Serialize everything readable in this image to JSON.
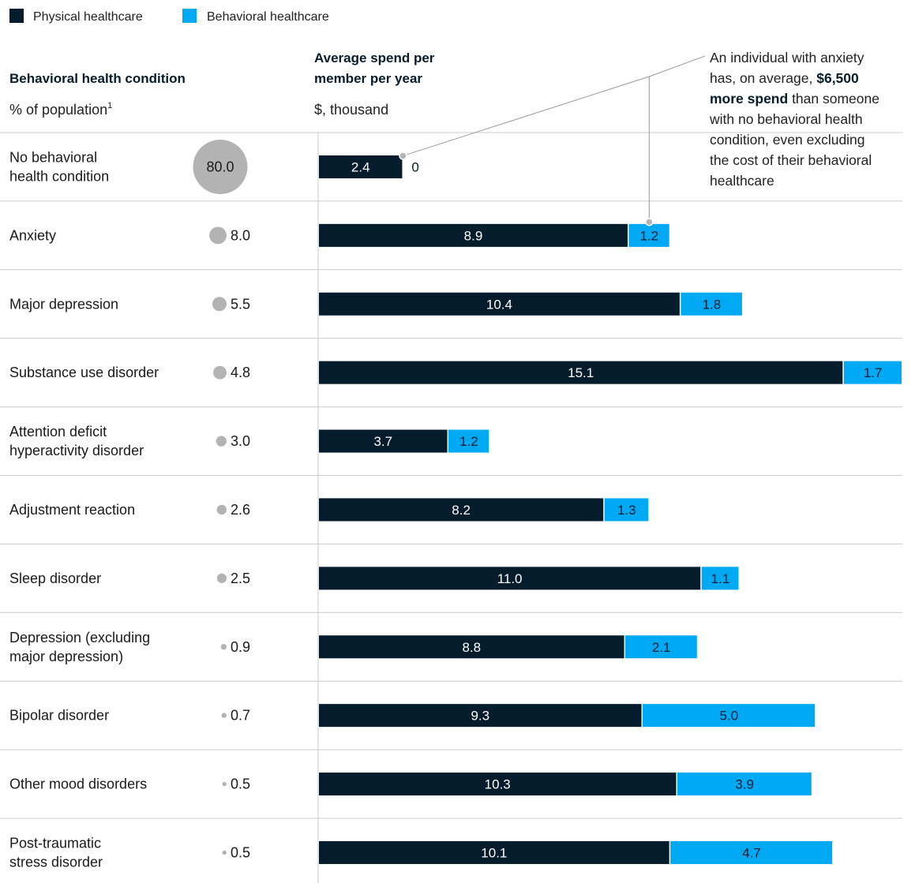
{
  "legend": {
    "physical": "Physical healthcare",
    "behavioral": "Behavioral healthcare"
  },
  "colors": {
    "physical": "#051c2c",
    "behavioral": "#00a9f4",
    "bubble": "#b3b3b3",
    "rule": "#cccccc"
  },
  "headers": {
    "condition_title": "Behavioral health condition",
    "condition_sub": "% of population",
    "condition_sup": "1",
    "spend_title_line1": "Average spend per",
    "spend_title_line2": "member per year",
    "spend_sub": "$, thousand"
  },
  "annotation": {
    "lines": [
      [
        {
          "t": "An individual with anxiety",
          "b": false
        }
      ],
      [
        {
          "t": "has, on average, ",
          "b": false
        },
        {
          "t": "$6,500",
          "b": true
        }
      ],
      [
        {
          "t": "more spend",
          "b": true
        },
        {
          "t": " than someone",
          "b": false
        }
      ],
      [
        {
          "t": "with no behavioral health",
          "b": false
        }
      ],
      [
        {
          "t": "condition, even excluding",
          "b": false
        }
      ],
      [
        {
          "t": "the cost of their behavioral",
          "b": false
        }
      ],
      [
        {
          "t": "healthcare",
          "b": false
        }
      ]
    ]
  },
  "chart_data": {
    "type": "bar",
    "stacked": true,
    "orientation": "horizontal",
    "categories": [
      "No behavioral health condition",
      "Anxiety",
      "Major depression",
      "Substance use disorder",
      "Attention deficit hyperactivity disorder",
      "Adjustment reaction",
      "Sleep disorder",
      "Depression (excluding major depression)",
      "Bipolar disorder",
      "Other mood disorders",
      "Post-traumatic stress disorder"
    ],
    "category_lines": [
      [
        "No behavioral",
        "health condition"
      ],
      [
        "Anxiety"
      ],
      [
        "Major depression"
      ],
      [
        "Substance use disorder"
      ],
      [
        "Attention deficit",
        "hyperactivity disorder"
      ],
      [
        "Adjustment reaction"
      ],
      [
        "Sleep disorder"
      ],
      [
        "Depression (excluding",
        "major depression)"
      ],
      [
        "Bipolar disorder"
      ],
      [
        "Other mood disorders"
      ],
      [
        "Post-traumatic",
        "stress disorder"
      ]
    ],
    "population_pct": [
      80.0,
      8.0,
      5.5,
      4.8,
      3.0,
      2.6,
      2.5,
      0.9,
      0.7,
      0.5,
      0.5
    ],
    "population_labels": [
      "80.0",
      "8.0",
      "5.5",
      "4.8",
      "3.0",
      "2.6",
      "2.5",
      "0.9",
      "0.7",
      "0.5",
      "0.5"
    ],
    "series": [
      {
        "name": "Physical healthcare",
        "values": [
          2.4,
          8.9,
          10.4,
          15.1,
          3.7,
          8.2,
          11.0,
          8.8,
          9.3,
          10.3,
          10.1
        ],
        "labels": [
          "2.4",
          "8.9",
          "10.4",
          "15.1",
          "3.7",
          "8.2",
          "11.0",
          "8.8",
          "9.3",
          "10.3",
          "10.1"
        ]
      },
      {
        "name": "Behavioral healthcare",
        "values": [
          0,
          1.2,
          1.8,
          1.7,
          1.2,
          1.3,
          1.1,
          2.1,
          5.0,
          3.9,
          4.7
        ],
        "labels": [
          "0",
          "1.2",
          "1.8",
          "1.7",
          "1.2",
          "1.3",
          "1.1",
          "2.1",
          "5.0",
          "3.9",
          "4.7"
        ]
      }
    ],
    "xlim": [
      0,
      16.8
    ]
  }
}
